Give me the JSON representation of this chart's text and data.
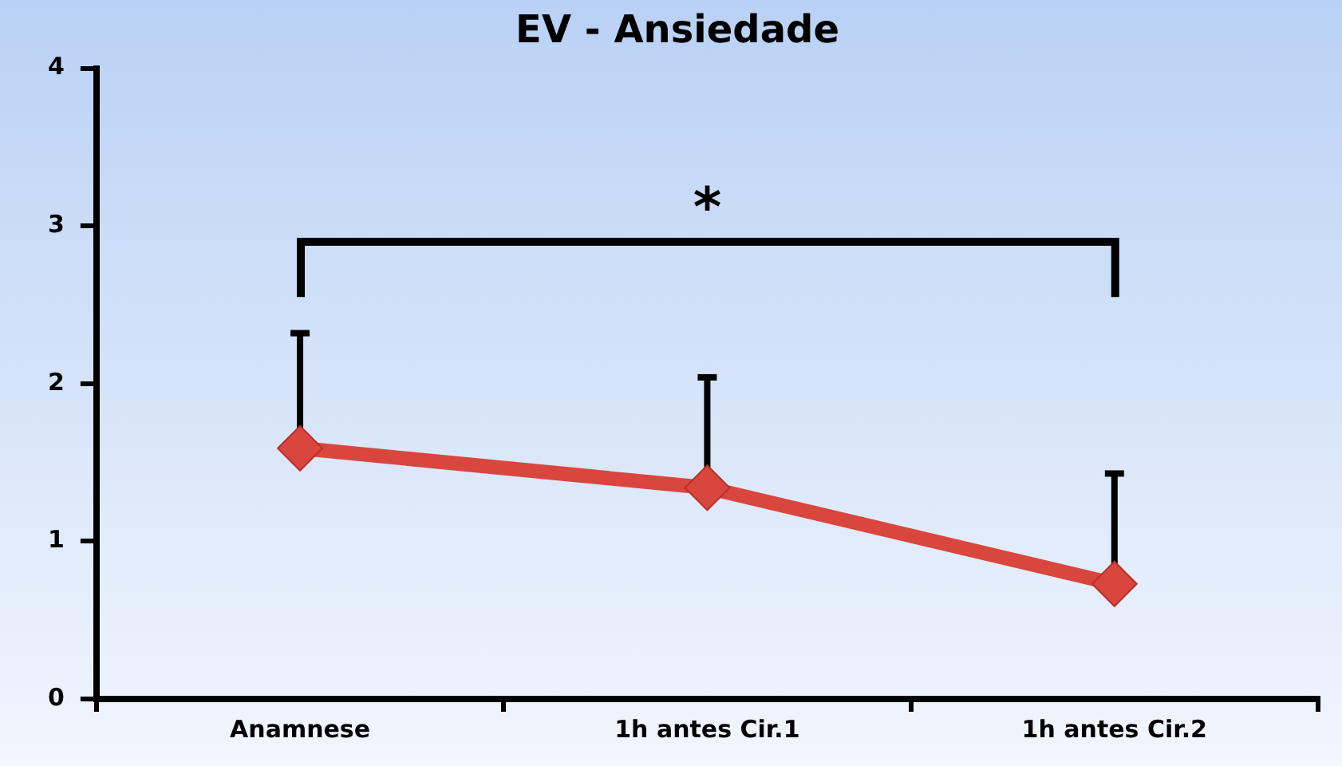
{
  "chart_data": {
    "type": "line",
    "title": "EV - Ansiedade",
    "categories": [
      "Anamnese",
      "1h antes Cir.1",
      "1h antes Cir.2"
    ],
    "series": [
      {
        "color": "#d9463e",
        "values": [
          1.59,
          1.34,
          0.73
        ],
        "errors": [
          [
            1.59,
            2.32
          ],
          [
            1.34,
            2.04
          ],
          [
            0.73,
            1.43
          ]
        ]
      }
    ],
    "ylim": [
      0,
      4
    ],
    "yticks": [
      0,
      1,
      2,
      3,
      4
    ],
    "grid": false,
    "legend": false,
    "marker": "diamond",
    "line_style": "solid",
    "annotations": [
      "*"
    ]
  }
}
